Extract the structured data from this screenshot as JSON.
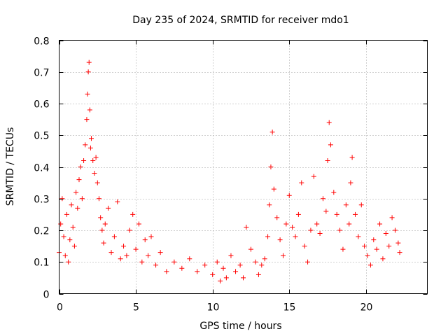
{
  "chart_data": {
    "type": "scatter",
    "title": "Day 235 of 2024, SRMTID for receiver mdo1",
    "xlabel": "GPS time / hours",
    "ylabel": "SRMTID / TECUs",
    "xlim": [
      0,
      24
    ],
    "ylim": [
      0,
      0.8
    ],
    "xticks": [
      0,
      5,
      10,
      15,
      20
    ],
    "xtick_labels": [
      "0",
      "5",
      "10",
      "15",
      "20"
    ],
    "yticks": [
      0,
      0.1,
      0.2,
      0.3,
      0.4,
      0.5,
      0.6,
      0.7,
      0.8
    ],
    "ytick_labels": [
      "0",
      "0.1",
      "0.2",
      "0.3",
      "0.4",
      "0.5",
      "0.6",
      "0.7",
      "0.8"
    ],
    "grid": true,
    "marker": "+",
    "color": "#ff0000",
    "series": [
      {
        "name": "SRMTID",
        "x": [
          0.0,
          0.1,
          0.2,
          0.3,
          0.4,
          0.5,
          0.6,
          0.7,
          0.8,
          0.9,
          1.0,
          1.1,
          1.2,
          1.3,
          1.4,
          1.5,
          1.6,
          1.7,
          1.8,
          1.85,
          1.9,
          1.95,
          2.0,
          2.05,
          2.1,
          2.2,
          2.3,
          2.4,
          2.5,
          2.6,
          2.7,
          2.8,
          2.9,
          3.0,
          3.2,
          3.4,
          3.6,
          3.8,
          4.0,
          4.2,
          4.4,
          4.6,
          4.8,
          5.0,
          5.2,
          5.4,
          5.6,
          5.8,
          6.0,
          6.3,
          6.6,
          7.0,
          7.5,
          8.0,
          8.5,
          9.0,
          9.5,
          10.0,
          10.3,
          10.5,
          10.7,
          10.9,
          11.2,
          11.5,
          11.8,
          12.0,
          12.2,
          12.5,
          12.8,
          13.0,
          13.2,
          13.4,
          13.6,
          13.7,
          13.8,
          13.9,
          14.0,
          14.2,
          14.4,
          14.6,
          14.8,
          15.0,
          15.2,
          15.4,
          15.6,
          15.8,
          16.0,
          16.2,
          16.4,
          16.6,
          16.8,
          17.0,
          17.2,
          17.4,
          17.5,
          17.6,
          17.7,
          17.9,
          18.1,
          18.3,
          18.5,
          18.7,
          18.9,
          19.0,
          19.1,
          19.3,
          19.5,
          19.7,
          19.9,
          20.1,
          20.3,
          20.5,
          20.7,
          20.9,
          21.1,
          21.3,
          21.5,
          21.7,
          21.9,
          22.1,
          22.2
        ],
        "y": [
          0.13,
          0.22,
          0.3,
          0.18,
          0.12,
          0.25,
          0.1,
          0.17,
          0.28,
          0.21,
          0.15,
          0.32,
          0.27,
          0.36,
          0.4,
          0.3,
          0.42,
          0.47,
          0.55,
          0.63,
          0.7,
          0.73,
          0.58,
          0.46,
          0.49,
          0.42,
          0.38,
          0.43,
          0.35,
          0.3,
          0.24,
          0.2,
          0.16,
          0.22,
          0.27,
          0.13,
          0.18,
          0.29,
          0.11,
          0.15,
          0.12,
          0.2,
          0.25,
          0.14,
          0.22,
          0.1,
          0.17,
          0.12,
          0.18,
          0.09,
          0.13,
          0.07,
          0.1,
          0.08,
          0.11,
          0.07,
          0.09,
          0.06,
          0.1,
          0.04,
          0.08,
          0.05,
          0.12,
          0.07,
          0.09,
          0.05,
          0.21,
          0.14,
          0.1,
          0.06,
          0.09,
          0.11,
          0.18,
          0.28,
          0.4,
          0.51,
          0.33,
          0.24,
          0.17,
          0.12,
          0.22,
          0.31,
          0.21,
          0.18,
          0.25,
          0.35,
          0.15,
          0.1,
          0.2,
          0.37,
          0.22,
          0.19,
          0.3,
          0.26,
          0.42,
          0.54,
          0.47,
          0.32,
          0.25,
          0.2,
          0.14,
          0.28,
          0.22,
          0.35,
          0.43,
          0.25,
          0.18,
          0.28,
          0.15,
          0.12,
          0.09,
          0.17,
          0.14,
          0.22,
          0.11,
          0.19,
          0.15,
          0.24,
          0.2,
          0.16,
          0.13
        ]
      }
    ]
  }
}
